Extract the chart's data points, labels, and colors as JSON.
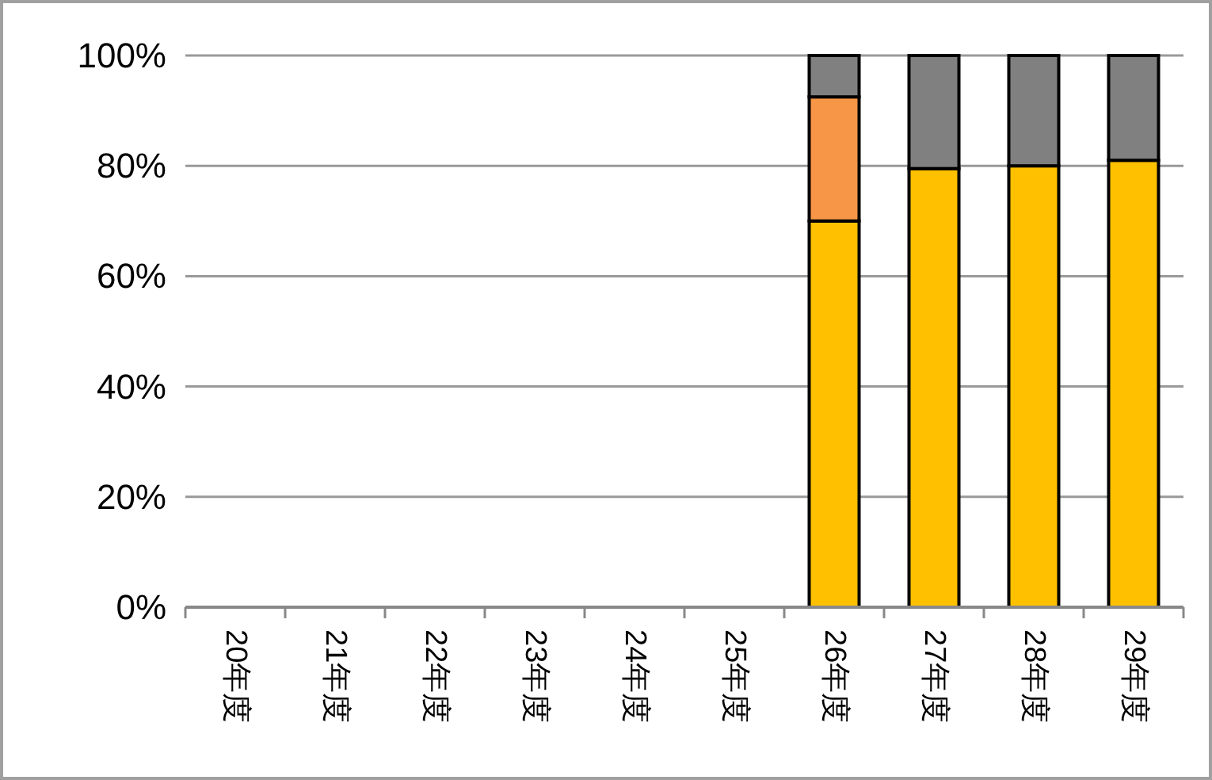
{
  "chart_data": {
    "type": "bar",
    "stacked": true,
    "grid": "y",
    "categories": [
      "20年度",
      "21年度",
      "22年度",
      "23年度",
      "24年度",
      "25年度",
      "26年度",
      "27年度",
      "28年度",
      "29年度"
    ],
    "series": [
      {
        "color": "#ffc000",
        "values": [
          null,
          null,
          null,
          null,
          null,
          null,
          70,
          79.5,
          80,
          81
        ]
      },
      {
        "color": "#f79646",
        "values": [
          null,
          null,
          null,
          null,
          null,
          null,
          22.5,
          null,
          null,
          null
        ]
      },
      {
        "color": "#808080",
        "values": [
          null,
          null,
          null,
          null,
          null,
          null,
          7.5,
          20.5,
          20,
          19
        ]
      }
    ],
    "ylim": [
      0,
      100
    ],
    "yticks": [
      {
        "value": 0,
        "label": "0%"
      },
      {
        "value": 20,
        "label": "20%"
      },
      {
        "value": 40,
        "label": "40%"
      },
      {
        "value": 60,
        "label": "60%"
      },
      {
        "value": 80,
        "label": "80%"
      },
      {
        "value": 100,
        "label": "100%"
      }
    ]
  }
}
